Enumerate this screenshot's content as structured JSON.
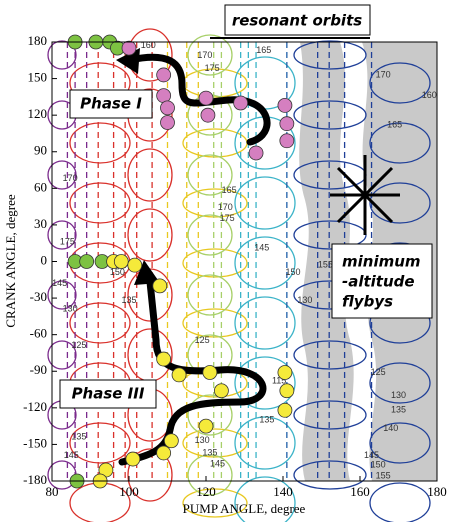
{
  "chart_data": {
    "type": "scatter",
    "xlabel": "PUMP ANGLE, degree",
    "ylabel": "CRANK ANGLE, degree",
    "xlim": [
      80,
      180
    ],
    "ylim": [
      -180,
      180
    ],
    "xticks": [
      80,
      100,
      120,
      140,
      160,
      180
    ],
    "yticks": [
      -180,
      -150,
      -120,
      -90,
      -60,
      -30,
      0,
      30,
      60,
      90,
      120,
      150,
      180
    ],
    "annotations": {
      "resonant": "resonant orbits",
      "phase1": "Phase I",
      "phase3": "Phase III",
      "flybys": [
        "minimum",
        "-altitude",
        "flybys"
      ]
    },
    "series": [
      {
        "color": "#7dc242",
        "x": [
          86,
          91.4,
          95,
          97,
          86,
          89,
          93,
          86.5
        ],
        "values": [
          180,
          180,
          180,
          175,
          0,
          0,
          0,
          -180
        ]
      },
      {
        "color": "#d57fc0",
        "x": [
          100,
          109,
          109,
          110,
          110,
          120,
          120.5,
          129,
          140.5,
          141,
          141,
          133
        ],
        "values": [
          175,
          153,
          136,
          126,
          114,
          134,
          120,
          130,
          128,
          113,
          99,
          89
        ]
      },
      {
        "color": "#f5ea3a",
        "x": [
          96,
          98,
          101.5,
          108,
          109,
          113,
          121,
          124,
          120,
          111,
          109,
          140.5,
          141,
          140.5,
          101,
          94,
          92.5
        ],
        "values": [
          0,
          0,
          -3,
          -20,
          -80,
          -93,
          -91,
          -106,
          -135,
          -147,
          -157,
          -91,
          -106,
          -122,
          -162,
          -171,
          -180
        ]
      }
    ],
    "resonances": [
      {
        "x": 84,
        "color": "#7a2a8c"
      },
      {
        "x": 86,
        "color": "#7a2a8c"
      },
      {
        "x": 89,
        "color": "#7a2a8c"
      },
      {
        "x": 92,
        "color": "#d9312b"
      },
      {
        "x": 96,
        "color": "#d9312b"
      },
      {
        "x": 99,
        "color": "#d9312b"
      },
      {
        "x": 102,
        "color": "#d9312b"
      },
      {
        "x": 106,
        "color": "#d9312b"
      },
      {
        "x": 110,
        "color": "#e8c820"
      },
      {
        "x": 115,
        "color": "#e8c820"
      },
      {
        "x": 118,
        "color": "#e8c820"
      },
      {
        "x": 122,
        "color": "#a8d06a"
      },
      {
        "x": 124,
        "color": "#a8d06a"
      },
      {
        "x": 129,
        "color": "#3bb3c8"
      },
      {
        "x": 131,
        "color": "#3bb3c8"
      },
      {
        "x": 133,
        "color": "#3bb3c8"
      },
      {
        "x": 141,
        "color": "#1f5fa8"
      },
      {
        "x": 149,
        "color": "#1f3f98"
      },
      {
        "x": 152,
        "color": "#1f3f98"
      },
      {
        "x": 156,
        "color": "#1f3f98"
      },
      {
        "x": 163,
        "color": "#1f3f98"
      }
    ],
    "contour_labels": [
      {
        "value": 160,
        "x": 105,
        "y": 177
      },
      {
        "value": 170,
        "x": 119.7,
        "y": 169
      },
      {
        "value": 165,
        "x": 135,
        "y": 173
      },
      {
        "value": 175,
        "x": 121.6,
        "y": 158
      },
      {
        "value": 170,
        "x": 166,
        "y": 153
      },
      {
        "value": 160,
        "x": 178,
        "y": 136
      },
      {
        "value": 165,
        "x": 169,
        "y": 112
      },
      {
        "value": 165,
        "x": 126,
        "y": 58
      },
      {
        "value": 170,
        "x": 125,
        "y": 44
      },
      {
        "value": 175,
        "x": 125.5,
        "y": 35
      },
      {
        "value": 145,
        "x": 134.5,
        "y": 11
      },
      {
        "value": 150,
        "x": 142.6,
        "y": -9
      },
      {
        "value": 155,
        "x": 151,
        "y": -3
      },
      {
        "value": 130,
        "x": 145.7,
        "y": -32
      },
      {
        "value": 135,
        "x": 100,
        "y": -32
      },
      {
        "value": 140,
        "x": 106.8,
        "y": -22
      },
      {
        "value": 125,
        "x": 119,
        "y": -65
      },
      {
        "value": 115,
        "x": 139,
        "y": -98
      },
      {
        "value": 135,
        "x": 135.8,
        "y": -130
      },
      {
        "value": 130,
        "x": 119,
        "y": -147
      },
      {
        "value": 135,
        "x": 121,
        "y": -157
      },
      {
        "value": 145,
        "x": 123,
        "y": -166
      },
      {
        "value": 125,
        "x": 164.7,
        "y": -91
      },
      {
        "value": 130,
        "x": 170,
        "y": -110
      },
      {
        "value": 135,
        "x": 170,
        "y": -122
      },
      {
        "value": 140,
        "x": 168,
        "y": -137
      },
      {
        "value": 145,
        "x": 163,
        "y": -159
      },
      {
        "value": 150,
        "x": 164.7,
        "y": -167
      },
      {
        "value": 155,
        "x": 166,
        "y": -176
      },
      {
        "value": 170,
        "x": 84.7,
        "y": 68
      },
      {
        "value": 175,
        "x": 84,
        "y": 16
      },
      {
        "value": 150,
        "x": 97,
        "y": -9
      },
      {
        "value": 145,
        "x": 82,
        "y": -18
      },
      {
        "value": 125,
        "x": 87,
        "y": -69
      },
      {
        "value": 135,
        "x": 87,
        "y": -144
      },
      {
        "value": 145,
        "x": 85,
        "y": -159
      },
      {
        "value": 130,
        "x": 84.7,
        "y": -39
      }
    ]
  }
}
